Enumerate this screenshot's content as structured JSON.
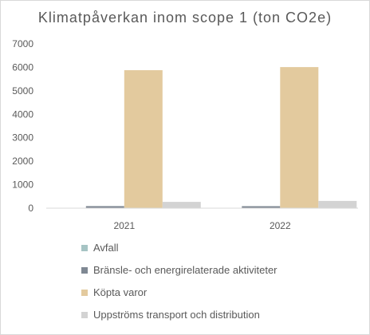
{
  "chart_data": {
    "type": "bar",
    "title": "Klimatpåverkan inom scope 1 (ton CO2e)",
    "categories": [
      "2021",
      "2022"
    ],
    "series": [
      {
        "name": "Avfall",
        "color": "#a6c4c4",
        "values": [
          8,
          8
        ]
      },
      {
        "name": "Bränsle- och energirelaterade aktiviteter",
        "color": "#7f8893",
        "values": [
          90,
          85
        ]
      },
      {
        "name": "Köpta varor",
        "color": "#e3ca9e",
        "values": [
          5880,
          6010
        ]
      },
      {
        "name": "Uppströms transport och distribution",
        "color": "#d3d3d3",
        "values": [
          270,
          310
        ]
      }
    ],
    "ylim": [
      0,
      7000
    ],
    "yticks": [
      "0",
      "1000",
      "2000",
      "3000",
      "4000",
      "5000",
      "6000",
      "7000"
    ],
    "xlabel": "",
    "ylabel": "",
    "grid": false,
    "legend_position": "bottom"
  }
}
